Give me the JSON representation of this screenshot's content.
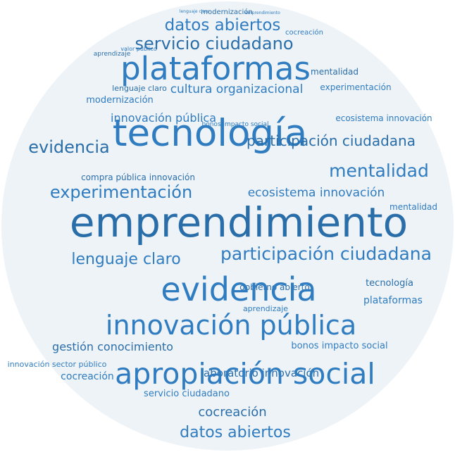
{
  "cloud": {
    "background_color": "#eef3f8",
    "word_colors": {
      "primary": "#2f7cc0",
      "secondary": "#2a6ea9"
    },
    "words": [
      "lenguaje claro",
      "modernización",
      "emprendimiento",
      "datos abiertos",
      "servicio ciudadano",
      "cocreación",
      "valor público",
      "aprendizaje",
      "plataformas",
      "cultura organizacional",
      "mentalidad",
      "experimentación",
      "modernización",
      "lenguaje claro",
      "innovación pública",
      "tecnología",
      "evidencia",
      "mentalidad",
      "ecosistema innovación",
      "participación ciudadana",
      "bonos impacto social",
      "experimentación",
      "compra pública innovación",
      "ecosistema innovación",
      "mentalidad",
      "emprendimiento",
      "participación ciudadana",
      "lenguaje claro",
      "gobierno abierto",
      "evidencia",
      "innovación pública",
      "tecnología",
      "plataformas",
      "aprendizaje",
      "gestión conocimiento",
      "bonos impacto social",
      "innovación sector público",
      "laboratorio innovación",
      "cocreación",
      "apropiación social",
      "cocreación",
      "datos abiertos",
      "servicio ciudadano"
    ]
  }
}
